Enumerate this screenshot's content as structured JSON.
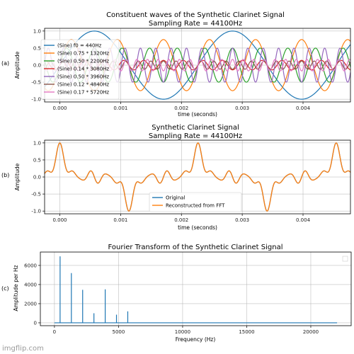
{
  "watermark": "imgflip.com",
  "chart_data": [
    {
      "panel_label": "(a)",
      "type": "line",
      "title": "Constituent waves of the Synthetic Clarinet Signal",
      "subtitle": "Sampling Rate = 44100Hz",
      "xlabel": "time (seconds)",
      "ylabel": "Amplitude",
      "xlim": [
        -0.00025,
        0.00478
      ],
      "ylim": [
        -1.08,
        1.08
      ],
      "xticks": [
        "0.000",
        "0.001",
        "0.002",
        "0.003",
        "0.004"
      ],
      "yticks": [
        "1.0",
        "0.5",
        "0.0",
        "-0.5",
        "-1.0"
      ],
      "grid": true,
      "legend_position": "upper-left",
      "series": [
        {
          "name": "(Sine) f0 = 440Hz",
          "amplitude": 1.0,
          "frequency_hz": 440,
          "color": "#1f77b4"
        },
        {
          "name": "(Sine) 0.75 * 1320Hz",
          "amplitude": 0.75,
          "frequency_hz": 1320,
          "color": "#ff7f0e"
        },
        {
          "name": "(Sine) 0.50 * 2200Hz",
          "amplitude": 0.5,
          "frequency_hz": 2200,
          "color": "#2ca02c"
        },
        {
          "name": "(Sine) 0.14 * 3080Hz",
          "amplitude": 0.14,
          "frequency_hz": 3080,
          "color": "#d62728"
        },
        {
          "name": "(Sine) 0.50 * 3960Hz",
          "amplitude": 0.5,
          "frequency_hz": 3960,
          "color": "#9467bd"
        },
        {
          "name": "(Sine) 0.12 * 4840Hz",
          "amplitude": 0.12,
          "frequency_hz": 4840,
          "color": "#8c564b"
        },
        {
          "name": "(Sine) 0.17 * 5720Hz",
          "amplitude": 0.17,
          "frequency_hz": 5720,
          "color": "#e377c2"
        }
      ]
    },
    {
      "panel_label": "(b)",
      "type": "line",
      "title": "Synthetic Clarinet Signal",
      "subtitle": "Sampling Rate = 44100Hz",
      "xlabel": "time (seconds)",
      "ylabel": "Amplitude",
      "xlim": [
        -0.00025,
        0.00478
      ],
      "ylim": [
        -1.08,
        1.08
      ],
      "xticks": [
        "0.000",
        "0.001",
        "0.002",
        "0.003",
        "0.004"
      ],
      "yticks": [
        "1.0",
        "0.5",
        "0.0",
        "-0.5",
        "-1.0"
      ],
      "grid": true,
      "legend_position": "lower-center",
      "series": [
        {
          "name": "Original",
          "color": "#1f77b4"
        },
        {
          "name": "Reconstructed from FFT",
          "color": "#ff7f0e"
        }
      ]
    },
    {
      "panel_label": "(c)",
      "type": "line",
      "title": "Fourier Transform of the Synthetic Clarinet Signal",
      "xlabel": "Frequency (Hz)",
      "ylabel": "Amplitude per Hz",
      "xlim": [
        -1100,
        23150
      ],
      "ylim": [
        -300,
        7400
      ],
      "xticks": [
        "0",
        "5000",
        "10000",
        "15000",
        "20000"
      ],
      "yticks": [
        "6000",
        "4000",
        "2000",
        "0"
      ],
      "grid": true,
      "legend_position": "upper-right",
      "x_max": 22050,
      "peaks": [
        {
          "frequency_hz": 440,
          "amplitude": 6950
        },
        {
          "frequency_hz": 1320,
          "amplitude": 5200
        },
        {
          "frequency_hz": 2200,
          "amplitude": 3450
        },
        {
          "frequency_hz": 3080,
          "amplitude": 1000
        },
        {
          "frequency_hz": 3960,
          "amplitude": 3500
        },
        {
          "frequency_hz": 4840,
          "amplitude": 850
        },
        {
          "frequency_hz": 5720,
          "amplitude": 1200
        }
      ],
      "color": "#1f77b4"
    }
  ]
}
